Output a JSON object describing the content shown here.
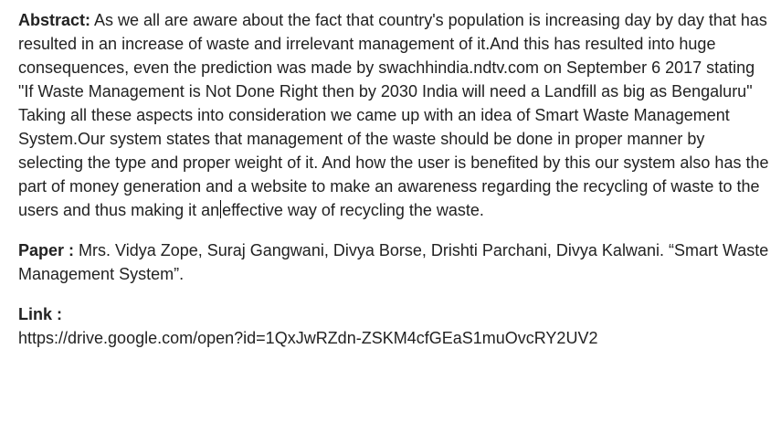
{
  "abstract": {
    "label": "Abstract:",
    "text_before_cursor": " As we all are aware about the fact that country's population is increasing day by day that has resulted in an increase of waste and irrelevant management of it.And this has resulted into huge consequences, even the prediction was made by swachhindia.ndtv.com on September 6 2017 stating \"If Waste Management is Not Done Right then by 2030 India will need a Landfill as big as Bengaluru\" Taking all these aspects into consideration we came up with an idea of Smart Waste Management System.Our system states that management of the waste should be done in proper manner by selecting the type and proper weight of it. And how the user is benefited by this our system also has the part of money generation and a website to make an awareness regarding the recycling of waste to the users and thus making it an",
    "text_after_cursor": "effective way of recycling the waste."
  },
  "paper": {
    "label": "Paper :",
    "text": " Mrs. Vidya Zope, Suraj Gangwani, Divya Borse, Drishti Parchani, Divya Kalwani. “Smart Waste Management System”."
  },
  "link": {
    "label": "Link :",
    "url": "https://drive.google.com/open?id=1QxJwRZdn-ZSKM4cfGEaS1muOvcRY2UV2"
  }
}
